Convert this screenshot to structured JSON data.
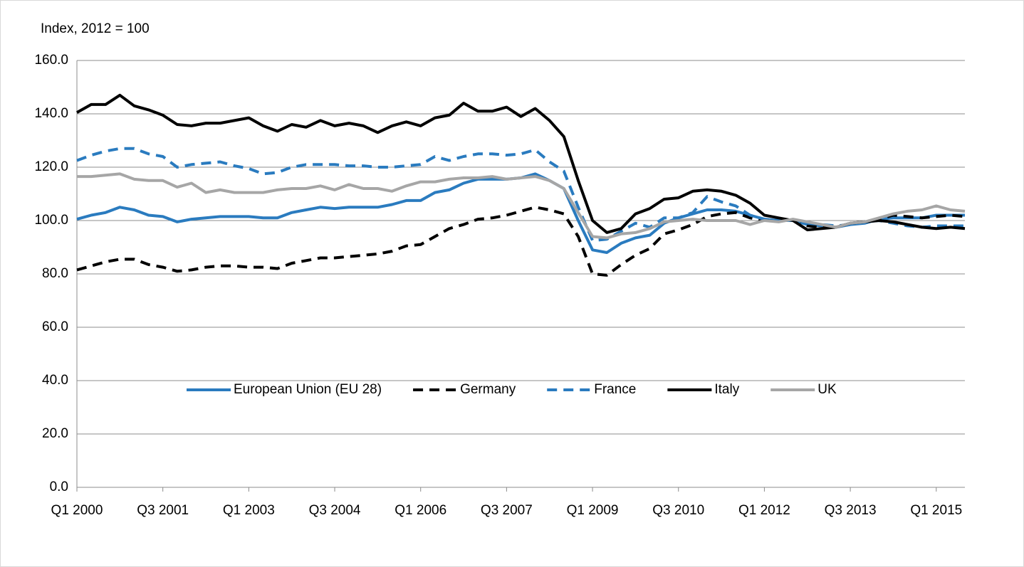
{
  "chart_data": {
    "type": "line",
    "ylabel": "Index, 2012 = 100",
    "categories": [
      "Q1 2000",
      null,
      null,
      null,
      null,
      null,
      "Q3 2001",
      null,
      null,
      null,
      null,
      null,
      "Q1 2003",
      null,
      null,
      null,
      null,
      null,
      "Q3 2004",
      null,
      null,
      null,
      null,
      null,
      "Q1 2006",
      null,
      null,
      null,
      null,
      null,
      "Q3 2007",
      null,
      null,
      null,
      null,
      null,
      "Q1 2009",
      null,
      null,
      null,
      null,
      null,
      "Q3 2010",
      null,
      null,
      null,
      null,
      null,
      "Q1 2012",
      null,
      null,
      null,
      null,
      null,
      "Q3 2013",
      null,
      null,
      null,
      null,
      null,
      "Q1 2015",
      null,
      null
    ],
    "ylim": [
      0,
      160
    ],
    "yticks": [
      {
        "value": 0,
        "label": "0.0"
      },
      {
        "value": 20,
        "label": "20.0"
      },
      {
        "value": 40,
        "label": "40.0"
      },
      {
        "value": 60,
        "label": "60.0"
      },
      {
        "value": 80,
        "label": "80.0"
      },
      {
        "value": 100,
        "label": "100.0"
      },
      {
        "value": 120,
        "label": "120.0"
      },
      {
        "value": 140,
        "label": "140.0"
      },
      {
        "value": 160,
        "label": "160.0"
      }
    ],
    "grid": true,
    "legend": "center",
    "series": [
      {
        "name": "European Union (EU 28)",
        "color": "#2a7bbf",
        "dashed": false,
        "values": [
          100.5,
          102,
          103,
          105,
          104,
          102,
          101.5,
          99.5,
          100.5,
          101,
          101.5,
          101.5,
          101.5,
          101,
          101,
          103,
          104,
          105,
          104.5,
          105,
          105,
          105,
          106,
          107.5,
          107.5,
          110.5,
          111.5,
          114,
          115.5,
          115.5,
          115.5,
          116,
          117.5,
          115,
          112,
          100,
          89,
          88,
          91.5,
          93.5,
          94.5,
          99,
          101,
          102.5,
          104,
          104,
          103.5,
          102,
          100.5,
          100,
          100,
          98.5,
          98,
          97.5,
          98.5,
          99,
          100.5,
          101,
          101,
          101,
          102,
          102,
          102
        ]
      },
      {
        "name": "Germany",
        "color": "#000000",
        "dashed": true,
        "values": [
          81.5,
          83,
          84.5,
          85.5,
          85.5,
          83.5,
          82.5,
          81,
          81.5,
          82.5,
          83,
          83,
          82.5,
          82.5,
          82,
          84,
          85,
          86,
          86,
          86.5,
          87,
          87.5,
          88.5,
          90.5,
          91,
          94,
          97,
          98.5,
          100.5,
          101,
          102,
          103.5,
          105,
          104,
          102.5,
          94,
          80,
          79.5,
          83.5,
          87,
          89.5,
          95,
          96.5,
          98.5,
          101.5,
          102.5,
          103,
          101,
          100,
          100,
          100,
          98,
          97.5,
          97.5,
          99,
          99.5,
          100.5,
          102,
          101.5,
          101,
          101.5,
          102,
          101.5
        ]
      },
      {
        "name": "France",
        "color": "#2a7bbf",
        "dashed": true,
        "values": [
          122.5,
          124.5,
          126,
          127,
          127,
          125,
          124,
          120,
          121,
          121.5,
          122,
          120.5,
          119.5,
          117.5,
          118,
          120,
          121,
          121,
          121,
          120.5,
          120.5,
          120,
          120,
          120.5,
          121,
          124,
          122.5,
          124,
          125,
          125,
          124.5,
          125,
          126.5,
          122,
          118.5,
          105,
          92.5,
          93,
          96,
          99,
          97.5,
          101,
          101,
          103,
          109,
          107,
          105.5,
          102,
          100.5,
          100,
          100,
          99,
          98.5,
          98,
          98.5,
          99.5,
          100,
          99,
          98,
          97.5,
          98,
          98,
          98
        ]
      },
      {
        "name": "Italy",
        "color": "#000000",
        "dashed": false,
        "values": [
          140.5,
          143.5,
          143.5,
          147,
          143,
          141.5,
          139.5,
          136,
          135.5,
          136.5,
          136.5,
          137.5,
          138.5,
          135.5,
          133.5,
          136,
          135,
          137.5,
          135.5,
          136.5,
          135.5,
          133,
          135.5,
          137,
          135.5,
          138.5,
          139.5,
          144,
          141,
          141,
          142.5,
          139,
          142,
          137.5,
          131.5,
          115,
          100,
          95.5,
          97,
          102.5,
          104.5,
          108,
          108.5,
          111,
          111.5,
          111,
          109.5,
          106.5,
          102,
          101,
          100,
          96.5,
          97,
          97.5,
          99,
          99.5,
          100,
          99.5,
          98.5,
          97.5,
          97,
          97.5,
          97
        ]
      },
      {
        "name": "UK",
        "color": "#a6a6a6",
        "dashed": false,
        "values": [
          116.5,
          116.5,
          117,
          117.5,
          115.5,
          115,
          115,
          112.5,
          114,
          110.5,
          111.5,
          110.5,
          110.5,
          110.5,
          111.5,
          112,
          112,
          113,
          111.5,
          113.5,
          112,
          112,
          111,
          113,
          114.5,
          114.5,
          115.5,
          116,
          116,
          116.5,
          115.5,
          116,
          116.5,
          115,
          112,
          103,
          94,
          93.5,
          95,
          95.5,
          97,
          99.5,
          100,
          100.5,
          100,
          100,
          100,
          98.5,
          100,
          99.5,
          100.5,
          99.5,
          98.5,
          97.5,
          99,
          99.5,
          101,
          102.5,
          103.5,
          104,
          105.5,
          104,
          103.5
        ]
      }
    ]
  }
}
